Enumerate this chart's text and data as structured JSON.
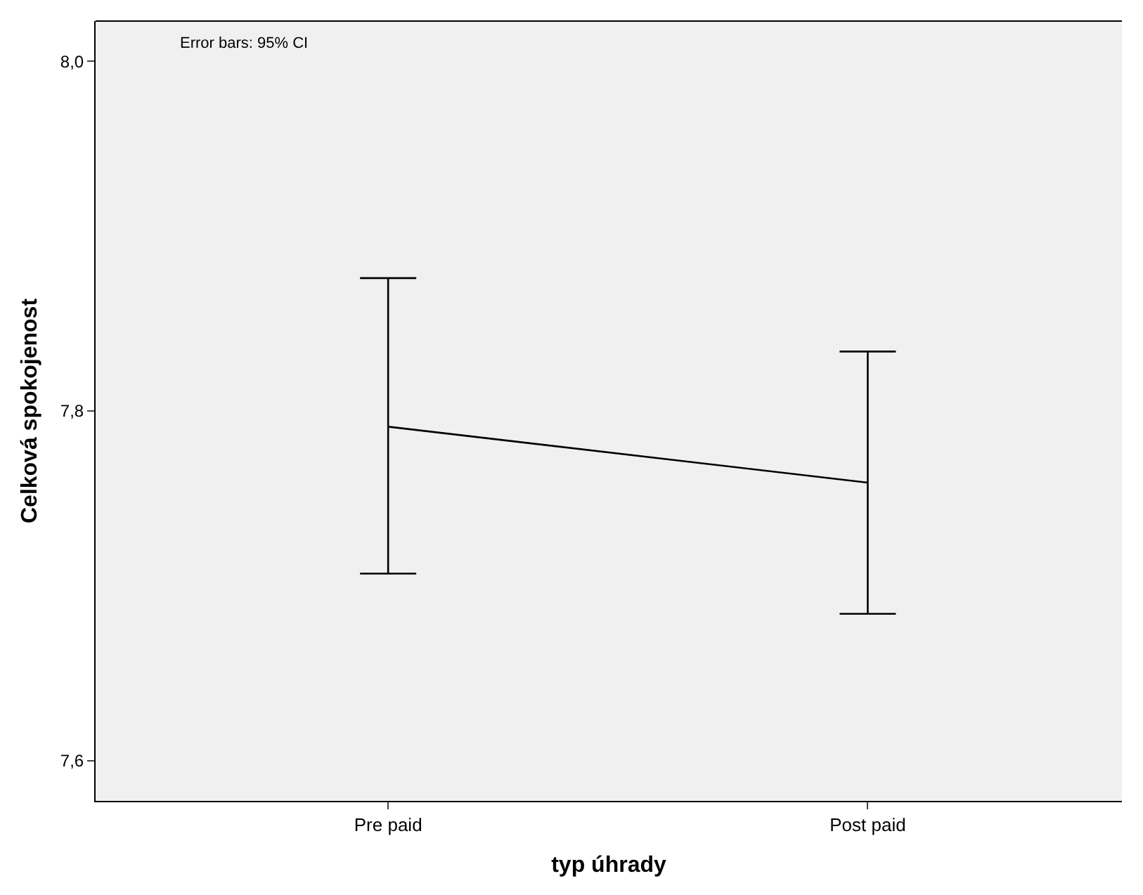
{
  "chart_data": {
    "type": "line",
    "xlabel": "typ úhrady",
    "ylabel": "Celková spokojenost",
    "categories": [
      "Pre paid",
      "Post paid"
    ],
    "series": [
      {
        "color": "#000000",
        "values": [
          7.791,
          7.759
        ],
        "errors": [
          [
            7.707,
            7.876
          ],
          [
            7.684,
            7.834
          ]
        ]
      }
    ],
    "ylim": [
      7.577,
      8.023
    ],
    "yticks": [
      {
        "value": 7.6,
        "label": "7,6"
      },
      {
        "value": 7.8,
        "label": "7,8"
      },
      {
        "value": 8.0,
        "label": "8,0"
      }
    ],
    "annotations": [
      "Error bars: 95% CI"
    ],
    "grid": false,
    "marker": "none",
    "line_style": "solid"
  }
}
